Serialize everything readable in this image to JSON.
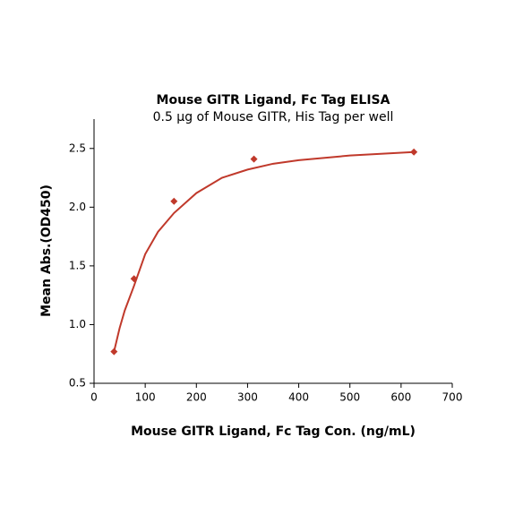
{
  "chart_data": {
    "type": "scatter",
    "title": "Mouse GITR Ligand, Fc Tag ELISA",
    "subtitle": "0.5 μg of Mouse GITR, His Tag per well",
    "x_label": "Mouse GITR Ligand, Fc Tag Con. (ng/mL)",
    "y_label": "Mean Abs.(OD450)",
    "xlim": [
      0,
      700
    ],
    "xticks": [
      0,
      100,
      200,
      300,
      400,
      500,
      600,
      700
    ],
    "ylim": [
      0.5,
      2.75
    ],
    "yticks": [
      0.5,
      {
        "value": 1,
        "label": "1.0"
      },
      1.5,
      {
        "value": 2,
        "label": "2.0"
      },
      2.5
    ],
    "series": [
      {
        "type": "scatter",
        "color": "#c0392b",
        "x": [
          39.06,
          78.125,
          156.25,
          312.5,
          625
        ],
        "values": [
          0.77,
          1.39,
          2.05,
          2.41,
          2.47
        ]
      },
      {
        "type": "line",
        "color": "#c0392b",
        "x": [
          39.06,
          50,
          60,
          78.125,
          100,
          125,
          156.25,
          200,
          250,
          300,
          350,
          400,
          500,
          625
        ],
        "values": [
          0.77,
          0.97,
          1.12,
          1.33,
          1.6,
          1.79,
          1.95,
          2.12,
          2.25,
          2.32,
          2.37,
          2.4,
          2.44,
          2.47
        ]
      }
    ]
  }
}
